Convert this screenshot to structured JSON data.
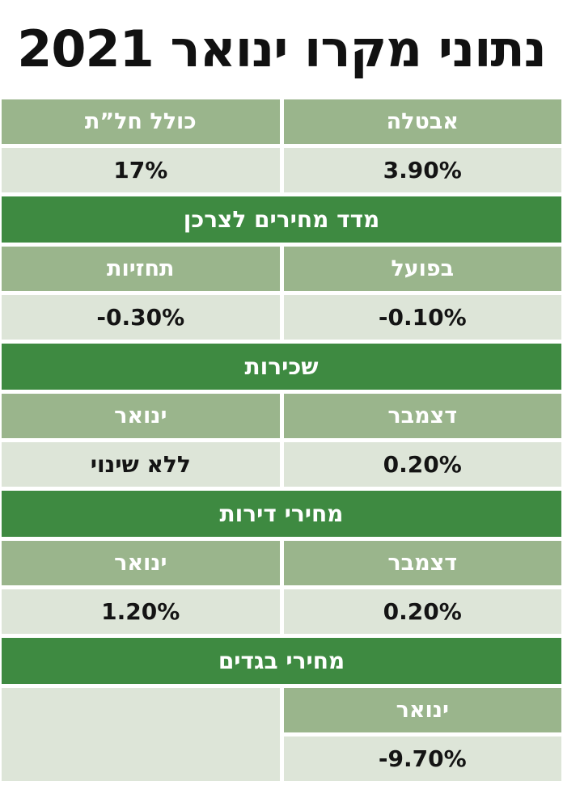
{
  "title": "נתוני מקרו ינואר 2021",
  "colors": {
    "section_header_bg": "#3e8a41",
    "column_header_bg": "#9ab58c",
    "value_cell_bg": "#dde5d8",
    "header_text": "#ffffff",
    "value_text": "#141414",
    "title_text": "#111111",
    "background": "#ffffff"
  },
  "chart_data": {
    "type": "table",
    "title": "נתוני מקרו ינואר 2021",
    "direction": "rtl",
    "layout": "two equal columns, full-width dark-green section rows, 5px white gutters",
    "sections": [
      {
        "section": "",
        "columns": [
          "אבטלה",
          "כולל חל”ת"
        ],
        "values": [
          "3.90%",
          "17%"
        ]
      },
      {
        "section": "מדד מחירים לצרכן",
        "columns": [
          "בפועל",
          "תחזיות"
        ],
        "values": [
          "-0.10%",
          "-0.30%"
        ]
      },
      {
        "section": "שכירות",
        "columns": [
          "דצמבר",
          "ינואר"
        ],
        "values": [
          "0.20%",
          "ללא שינוי"
        ]
      },
      {
        "section": "מחירי דירות",
        "columns": [
          "דצמבר",
          "ינואר"
        ],
        "values": [
          "0.20%",
          "1.20%"
        ]
      },
      {
        "section": "מחירי בגדים",
        "columns": [
          "ינואר"
        ],
        "values": [
          "-9.70%"
        ]
      }
    ]
  }
}
